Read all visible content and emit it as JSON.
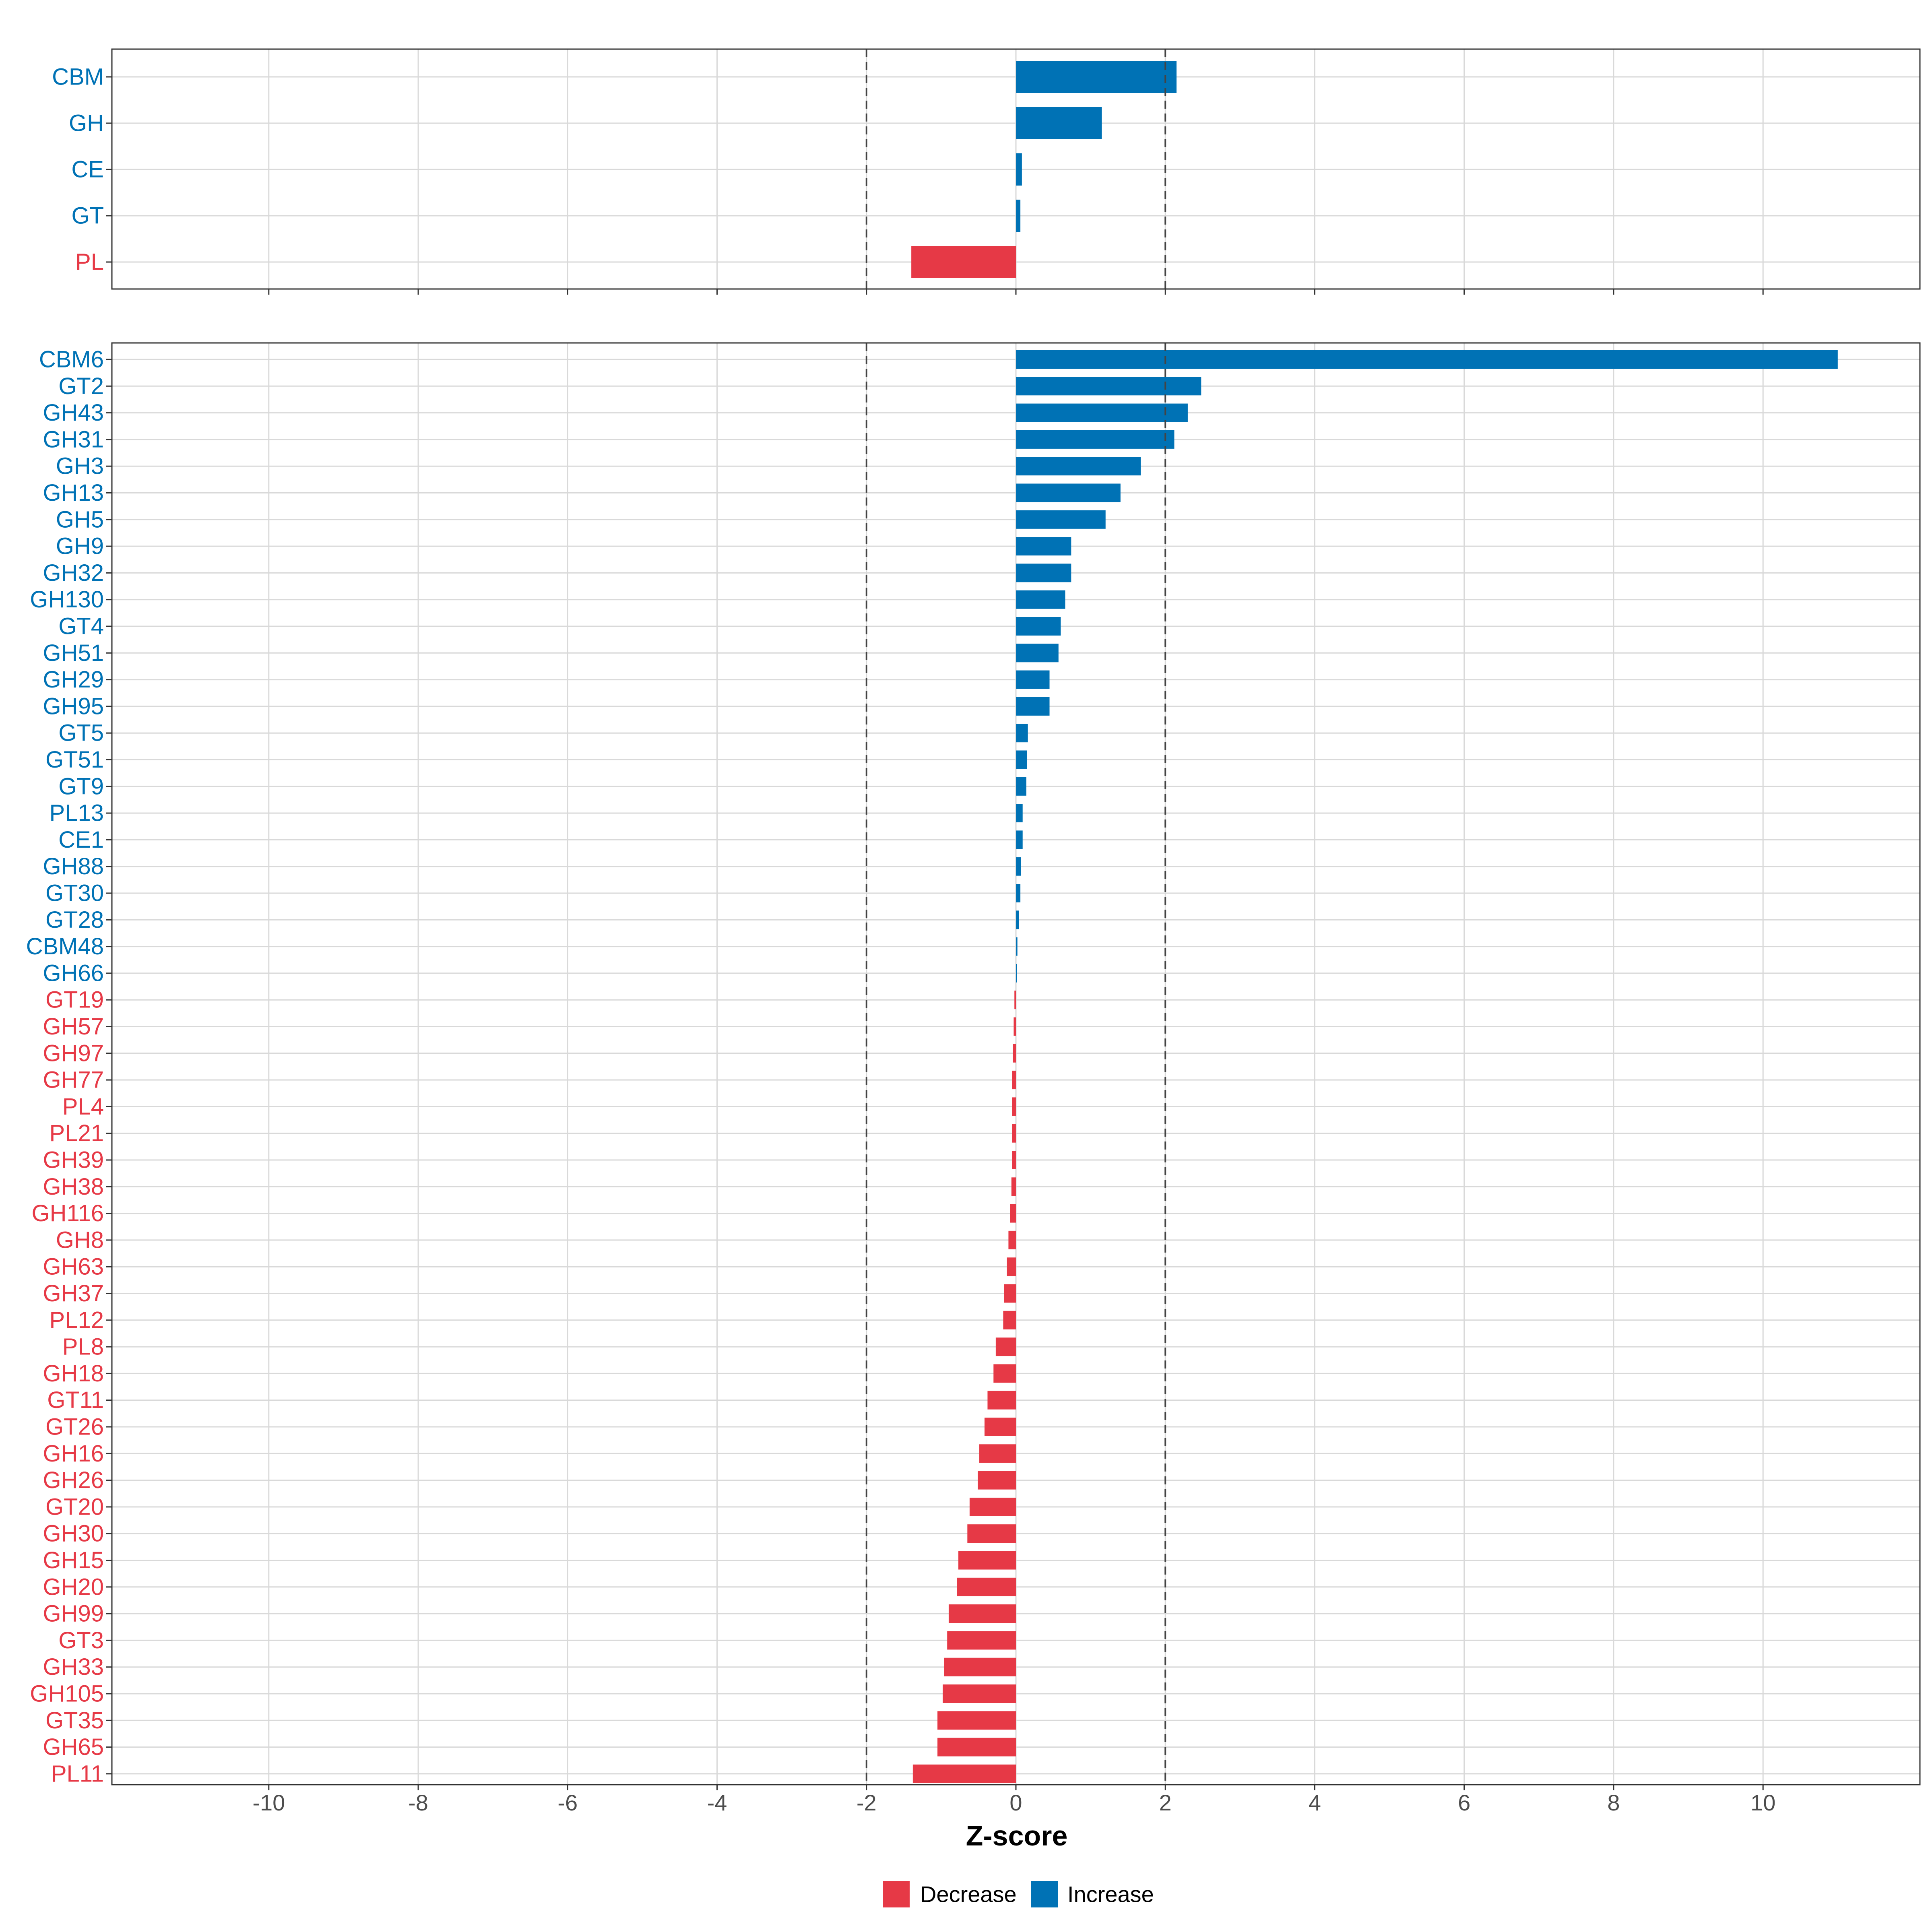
{
  "colors": {
    "increase": "#0072B5",
    "decrease": "#E63946",
    "grid": "#D9D9D9",
    "ref": "#444444"
  },
  "chart_data": {
    "type": "bar",
    "orientation": "horizontal",
    "xlabel": "Z-score",
    "xlim": [
      -12.1,
      12.1
    ],
    "x_ticks": [
      -10,
      -8,
      -6,
      -4,
      -2,
      0,
      2,
      4,
      6,
      8,
      10
    ],
    "x_tick_labels": [
      "-10",
      "-8",
      "-6",
      "-4",
      "-2",
      "0",
      "2",
      "4",
      "6",
      "8",
      "10"
    ],
    "reference_lines": [
      -2,
      2
    ],
    "legend": {
      "position": "bottom",
      "entries": [
        {
          "label": "Decrease",
          "color": "#E63946"
        },
        {
          "label": "Increase",
          "color": "#0072B5"
        }
      ]
    },
    "panels": [
      {
        "name": "class",
        "categories": [
          "CBM",
          "GH",
          "CE",
          "GT",
          "PL"
        ],
        "values": [
          2.15,
          1.15,
          0.08,
          0.06,
          -1.4
        ]
      },
      {
        "name": "family",
        "categories": [
          "CBM6",
          "GT2",
          "GH43",
          "GH31",
          "GH3",
          "GH13",
          "GH5",
          "GH9",
          "GH32",
          "GH130",
          "GT4",
          "GH51",
          "GH29",
          "GH95",
          "GT5",
          "GT51",
          "GT9",
          "PL13",
          "CE1",
          "GH88",
          "GT30",
          "GT28",
          "CBM48",
          "GH66",
          "GT19",
          "GH57",
          "GH97",
          "GH77",
          "PL4",
          "PL21",
          "GH39",
          "GH38",
          "GH116",
          "GH8",
          "GH63",
          "GH37",
          "PL12",
          "PL8",
          "GH18",
          "GT11",
          "GT26",
          "GH16",
          "GH26",
          "GT20",
          "GH30",
          "GH15",
          "GH20",
          "GH99",
          "GT3",
          "GH33",
          "GH105",
          "GT35",
          "GH65",
          "PL11"
        ],
        "values": [
          11.0,
          2.48,
          2.3,
          2.12,
          1.67,
          1.4,
          1.2,
          0.74,
          0.74,
          0.66,
          0.6,
          0.57,
          0.45,
          0.45,
          0.16,
          0.15,
          0.14,
          0.09,
          0.09,
          0.07,
          0.06,
          0.04,
          0.02,
          0.01,
          -0.02,
          -0.03,
          -0.04,
          -0.05,
          -0.05,
          -0.05,
          -0.05,
          -0.06,
          -0.08,
          -0.1,
          -0.12,
          -0.16,
          -0.17,
          -0.27,
          -0.3,
          -0.38,
          -0.42,
          -0.49,
          -0.51,
          -0.62,
          -0.65,
          -0.77,
          -0.79,
          -0.9,
          -0.92,
          -0.96,
          -0.98,
          -1.05,
          -1.05,
          -1.38
        ]
      }
    ]
  }
}
